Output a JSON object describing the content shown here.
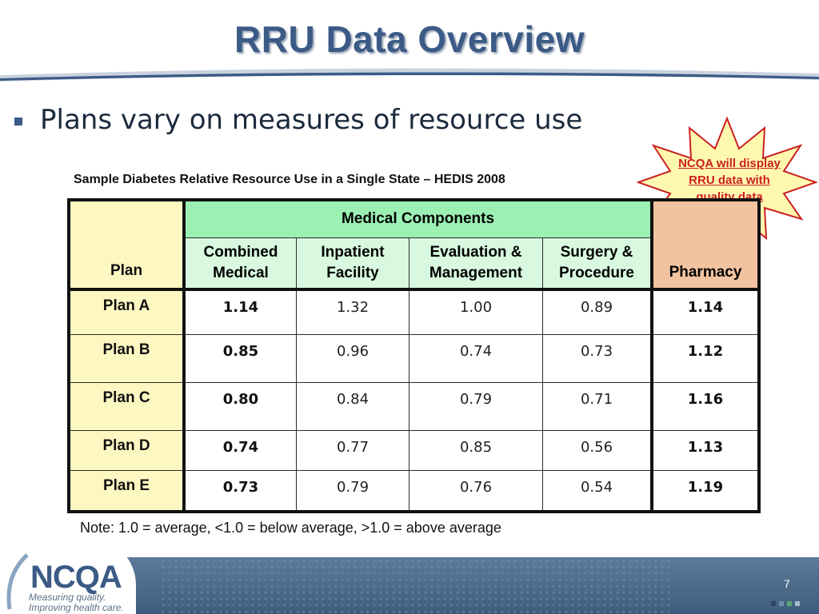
{
  "slide": {
    "title": "RRU Data Overview",
    "bullet": "Plans vary on measures of resource use",
    "caption": "Sample Diabetes Relative Resource Use in a Single State – HEDIS 2008",
    "note": "Note: 1.0 = average, <1.0 = below average, >1.0 = above average",
    "page_number": "7"
  },
  "callout": {
    "line1": "NCQA will display",
    "line2": "RRU data with",
    "line3": "quality data"
  },
  "table": {
    "plan_header": "Plan",
    "group_header": "Medical Components",
    "pharmacy_header": "Pharmacy",
    "columns": [
      {
        "line1": "Combined",
        "line2": "Medical"
      },
      {
        "line1": "Inpatient",
        "line2": "Facility"
      },
      {
        "line1": "Evaluation &",
        "line2": "Management"
      },
      {
        "line1": "Surgery &",
        "line2": "Procedure"
      }
    ],
    "rows": [
      {
        "plan": "Plan A",
        "combined": "1.14",
        "inpatient": "1.32",
        "em": "1.00",
        "surgery": "0.89",
        "pharmacy": "1.14"
      },
      {
        "plan": "Plan B",
        "combined": "0.85",
        "inpatient": "0.96",
        "em": "0.74",
        "surgery": "0.73",
        "pharmacy": "1.12"
      },
      {
        "plan": "Plan C",
        "combined": "0.80",
        "inpatient": "0.84",
        "em": "0.79",
        "surgery": "0.71",
        "pharmacy": "1.16"
      },
      {
        "plan": "Plan D",
        "combined": "0.74",
        "inpatient": "0.77",
        "em": "0.85",
        "surgery": "0.56",
        "pharmacy": "1.13"
      },
      {
        "plan": "Plan E",
        "combined": "0.73",
        "inpatient": "0.79",
        "em": "0.76",
        "surgery": "0.54",
        "pharmacy": "1.19"
      }
    ]
  },
  "logo": {
    "name": "NCQA",
    "tagline1": "Measuring quality.",
    "tagline2": "Improving health care."
  },
  "colors": {
    "title": "#3b5a86",
    "plan_column": "#fdf7c2",
    "medical_header": "#9cf0b4",
    "medical_subheader": "#d8f9df",
    "pharmacy_header": "#f2c3a0",
    "callout_fill": "#fff9b0",
    "callout_text": "#cc1f1f",
    "footer": "#4a6888"
  }
}
